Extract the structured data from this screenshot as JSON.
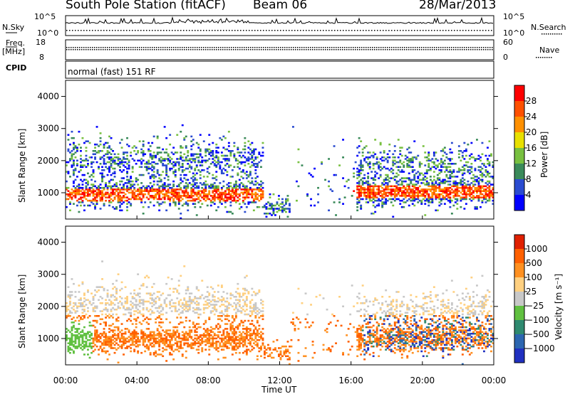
{
  "header": {
    "station": "South Pole Station (fitACF)",
    "beam": "Beam 06",
    "date": "28/Mar/2013"
  },
  "top_panel_labels": {
    "n_sky": "N.Sky",
    "n_search": "N.Search",
    "freq": "Freq.",
    "freq_unit": "[MHz]",
    "cpid": "CPID",
    "nave": "Nave",
    "cpid_value": "normal (fast) 151 RF"
  },
  "chart_data": [
    {
      "type": "line",
      "name": "noise",
      "yticks_left": [
        "10^5",
        "10^0"
      ],
      "yticks_right": [
        "10^5",
        "10^0"
      ]
    },
    {
      "type": "line",
      "name": "frequency-nave",
      "yticks_left": [
        "18",
        "8"
      ],
      "yticks_right": [
        "60",
        "0"
      ]
    },
    {
      "type": "heatmap",
      "name": "power",
      "ylabel": "Slant Range [km]",
      "ylim": [
        180,
        4500
      ],
      "yticks": [
        1000,
        2000,
        3000,
        4000
      ],
      "xlim": [
        0,
        24
      ],
      "colorbar_label": "Power [dB]",
      "colorbar_ticks": [
        "28",
        "24",
        "20",
        "16",
        "12",
        "8",
        "4"
      ],
      "colors": [
        "#0000ff",
        "#2a4bd0",
        "#3a8a5a",
        "#78c040",
        "#e8e000",
        "#ff9000",
        "#ff5000",
        "#ff0000"
      ]
    },
    {
      "type": "heatmap",
      "name": "velocity",
      "ylabel": "Slant Range [km]",
      "ylim": [
        180,
        4500
      ],
      "yticks": [
        1000,
        2000,
        3000,
        4000
      ],
      "xlim": [
        0,
        24
      ],
      "xticks": [
        "00:00",
        "04:00",
        "08:00",
        "12:00",
        "16:00",
        "20:00",
        "00:00"
      ],
      "xlabel": "Time UT",
      "colorbar_label": "Velocity [m s⁻¹]",
      "colorbar_ticks": [
        "1000",
        "500",
        "100",
        "25",
        "−25",
        "−100",
        "−500",
        "−1000"
      ],
      "colors": [
        "#2030c0",
        "#2c66b0",
        "#2f8a70",
        "#60c040",
        "#c8c8c8",
        "#ffd080",
        "#ff9020",
        "#ff6000",
        "#e02000"
      ]
    }
  ]
}
